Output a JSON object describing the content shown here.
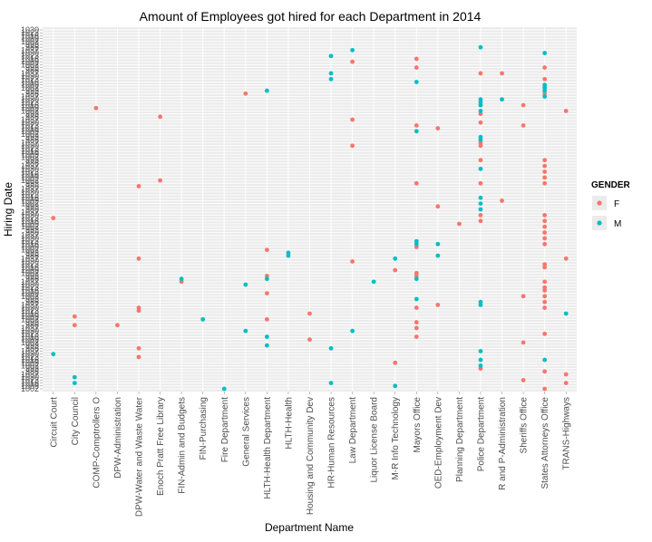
{
  "chart_data": {
    "type": "scatter",
    "title": "Amount of Employees got hired for each Department in 2014",
    "xlabel": "Department Name",
    "ylabel": "Hiring Date",
    "categories": [
      "Circuit Court",
      "City Council",
      "COMP-Comptrollers O",
      "DPW-Administration",
      "DPW-Water  and  Waste Water",
      "Enoch Pratt Free Library",
      "FIN-Admin  and  Budgets",
      "FIN-Purchasing",
      "Fire Department",
      "General Services",
      "HLTH-Health Department",
      "HLTH-Health",
      "Housing  and  Community Dev",
      "HR-Human Resources",
      "Law Department",
      "Liquor License Board",
      "M-R Info Technology",
      "Mayors Office",
      "OED-Employment Dev",
      "Planning Department",
      "Police Department",
      "R and P-Administration",
      "Sheriffs Office",
      "States Attorneys Office",
      "TRANS-Highways"
    ],
    "y_tick_count": 125,
    "y_tick_labels_visible": [
      "1002",
      "1009",
      "1016",
      "1023",
      "1030",
      "1037",
      "986",
      "993"
    ],
    "legend": {
      "title": "GENDER",
      "position": "right",
      "entries": [
        {
          "label": "F",
          "color": "#F8766D"
        },
        {
          "label": "M",
          "color": "#00BFC4"
        }
      ]
    },
    "grid": true,
    "panel_background": "#EBEBEB",
    "series": [
      {
        "name": "F",
        "color": "#F8766D",
        "points": [
          {
            "x": "Circuit Court",
            "y": 59
          },
          {
            "x": "City Council",
            "y": 25
          },
          {
            "x": "City Council",
            "y": 22
          },
          {
            "x": "COMP-Comptrollers O",
            "y": 97
          },
          {
            "x": "DPW-Administration",
            "y": 22
          },
          {
            "x": "DPW-Water  and  Waste Water",
            "y": 70
          },
          {
            "x": "DPW-Water  and  Waste Water",
            "y": 45
          },
          {
            "x": "DPW-Water  and  Waste Water",
            "y": 28
          },
          {
            "x": "DPW-Water  and  Waste Water",
            "y": 27
          },
          {
            "x": "DPW-Water  and  Waste Water",
            "y": 14
          },
          {
            "x": "DPW-Water  and  Waste Water",
            "y": 11
          },
          {
            "x": "Enoch Pratt Free Library",
            "y": 94
          },
          {
            "x": "Enoch Pratt Free Library",
            "y": 72
          },
          {
            "x": "FIN-Admin  and  Budgets",
            "y": 37
          },
          {
            "x": "General Services",
            "y": 102
          },
          {
            "x": "HLTH-Health Department",
            "y": 48
          },
          {
            "x": "HLTH-Health Department",
            "y": 39
          },
          {
            "x": "HLTH-Health Department",
            "y": 33
          },
          {
            "x": "HLTH-Health Department",
            "y": 24
          },
          {
            "x": "Housing  and  Community Dev",
            "y": 26
          },
          {
            "x": "Housing  and  Community Dev",
            "y": 17
          },
          {
            "x": "Law Department",
            "y": 113
          },
          {
            "x": "Law Department",
            "y": 93
          },
          {
            "x": "Law Department",
            "y": 84
          },
          {
            "x": "Law Department",
            "y": 44
          },
          {
            "x": "M-R Info Technology",
            "y": 41
          },
          {
            "x": "M-R Info Technology",
            "y": 9
          },
          {
            "x": "Mayors Office",
            "y": 114
          },
          {
            "x": "Mayors Office",
            "y": 111
          },
          {
            "x": "Mayors Office",
            "y": 91
          },
          {
            "x": "Mayors Office",
            "y": 71
          },
          {
            "x": "Mayors Office",
            "y": 49
          },
          {
            "x": "Mayors Office",
            "y": 40
          },
          {
            "x": "Mayors Office",
            "y": 39
          },
          {
            "x": "Mayors Office",
            "y": 28
          },
          {
            "x": "Mayors Office",
            "y": 23
          },
          {
            "x": "Mayors Office",
            "y": 21
          },
          {
            "x": "Mayors Office",
            "y": 18
          },
          {
            "x": "OED-Employment Dev",
            "y": 90
          },
          {
            "x": "OED-Employment Dev",
            "y": 63
          },
          {
            "x": "OED-Employment Dev",
            "y": 29
          },
          {
            "x": "Planning Department",
            "y": 57
          },
          {
            "x": "Police Department",
            "y": 109
          },
          {
            "x": "Police Department",
            "y": 98
          },
          {
            "x": "Police Department",
            "y": 95
          },
          {
            "x": "Police Department",
            "y": 92
          },
          {
            "x": "Police Department",
            "y": 85
          },
          {
            "x": "Police Department",
            "y": 84
          },
          {
            "x": "Police Department",
            "y": 79
          },
          {
            "x": "Police Department",
            "y": 71
          },
          {
            "x": "Police Department",
            "y": 60
          },
          {
            "x": "Police Department",
            "y": 58
          },
          {
            "x": "Police Department",
            "y": 7
          },
          {
            "x": "R and P-Administration",
            "y": 109
          },
          {
            "x": "R and P-Administration",
            "y": 65
          },
          {
            "x": "Sheriffs Office",
            "y": 98
          },
          {
            "x": "Sheriffs Office",
            "y": 91
          },
          {
            "x": "Sheriffs Office",
            "y": 32
          },
          {
            "x": "Sheriffs Office",
            "y": 16
          },
          {
            "x": "Sheriffs Office",
            "y": 3
          },
          {
            "x": "States Attorneys Office",
            "y": 111
          },
          {
            "x": "States Attorneys Office",
            "y": 107
          },
          {
            "x": "States Attorneys Office",
            "y": 104
          },
          {
            "x": "States Attorneys Office",
            "y": 102
          },
          {
            "x": "States Attorneys Office",
            "y": 79
          },
          {
            "x": "States Attorneys Office",
            "y": 77
          },
          {
            "x": "States Attorneys Office",
            "y": 75
          },
          {
            "x": "States Attorneys Office",
            "y": 73
          },
          {
            "x": "States Attorneys Office",
            "y": 71
          },
          {
            "x": "States Attorneys Office",
            "y": 60
          },
          {
            "x": "States Attorneys Office",
            "y": 58
          },
          {
            "x": "States Attorneys Office",
            "y": 56
          },
          {
            "x": "States Attorneys Office",
            "y": 54
          },
          {
            "x": "States Attorneys Office",
            "y": 52
          },
          {
            "x": "States Attorneys Office",
            "y": 50
          },
          {
            "x": "States Attorneys Office",
            "y": 43
          },
          {
            "x": "States Attorneys Office",
            "y": 42
          },
          {
            "x": "States Attorneys Office",
            "y": 37
          },
          {
            "x": "States Attorneys Office",
            "y": 35
          },
          {
            "x": "States Attorneys Office",
            "y": 34
          },
          {
            "x": "States Attorneys Office",
            "y": 32
          },
          {
            "x": "States Attorneys Office",
            "y": 30
          },
          {
            "x": "States Attorneys Office",
            "y": 28
          },
          {
            "x": "States Attorneys Office",
            "y": 19
          },
          {
            "x": "States Attorneys Office",
            "y": 6
          },
          {
            "x": "States Attorneys Office",
            "y": 0
          },
          {
            "x": "TRANS-Highways",
            "y": 96
          },
          {
            "x": "TRANS-Highways",
            "y": 45
          },
          {
            "x": "TRANS-Highways",
            "y": 5
          },
          {
            "x": "TRANS-Highways",
            "y": 2
          }
        ]
      },
      {
        "name": "M",
        "color": "#00BFC4",
        "points": [
          {
            "x": "Circuit Court",
            "y": 12
          },
          {
            "x": "City Council",
            "y": 4
          },
          {
            "x": "City Council",
            "y": 2
          },
          {
            "x": "FIN-Admin  and  Budgets",
            "y": 38
          },
          {
            "x": "FIN-Purchasing",
            "y": 24
          },
          {
            "x": "Fire Department",
            "y": 0
          },
          {
            "x": "General Services",
            "y": 36
          },
          {
            "x": "General Services",
            "y": 20
          },
          {
            "x": "HLTH-Health Department",
            "y": 103
          },
          {
            "x": "HLTH-Health Department",
            "y": 38
          },
          {
            "x": "HLTH-Health Department",
            "y": 18
          },
          {
            "x": "HLTH-Health Department",
            "y": 15
          },
          {
            "x": "HLTH-Health",
            "y": 47
          },
          {
            "x": "HLTH-Health",
            "y": 46
          },
          {
            "x": "HR-Human Resources",
            "y": 115
          },
          {
            "x": "HR-Human Resources",
            "y": 109
          },
          {
            "x": "HR-Human Resources",
            "y": 107
          },
          {
            "x": "HR-Human Resources",
            "y": 14
          },
          {
            "x": "HR-Human Resources",
            "y": 2
          },
          {
            "x": "Law Department",
            "y": 117
          },
          {
            "x": "Law Department",
            "y": 20
          },
          {
            "x": "Liquor License Board",
            "y": 37
          },
          {
            "x": "M-R Info Technology",
            "y": 45
          },
          {
            "x": "M-R Info Technology",
            "y": 1
          },
          {
            "x": "Mayors Office",
            "y": 106
          },
          {
            "x": "Mayors Office",
            "y": 89
          },
          {
            "x": "Mayors Office",
            "y": 51
          },
          {
            "x": "Mayors Office",
            "y": 50
          },
          {
            "x": "Mayors Office",
            "y": 38
          },
          {
            "x": "Mayors Office",
            "y": 31
          },
          {
            "x": "OED-Employment Dev",
            "y": 50
          },
          {
            "x": "OED-Employment Dev",
            "y": 46
          },
          {
            "x": "Police Department",
            "y": 118
          },
          {
            "x": "Police Department",
            "y": 100
          },
          {
            "x": "Police Department",
            "y": 99
          },
          {
            "x": "Police Department",
            "y": 98
          },
          {
            "x": "Police Department",
            "y": 96
          },
          {
            "x": "Police Department",
            "y": 87
          },
          {
            "x": "Police Department",
            "y": 86
          },
          {
            "x": "Police Department",
            "y": 76
          },
          {
            "x": "Police Department",
            "y": 66
          },
          {
            "x": "Police Department",
            "y": 64
          },
          {
            "x": "Police Department",
            "y": 62
          },
          {
            "x": "Police Department",
            "y": 30
          },
          {
            "x": "Police Department",
            "y": 29
          },
          {
            "x": "Police Department",
            "y": 13
          },
          {
            "x": "Police Department",
            "y": 10
          },
          {
            "x": "Police Department",
            "y": 8
          },
          {
            "x": "R and P-Administration",
            "y": 100
          },
          {
            "x": "States Attorneys Office",
            "y": 116
          },
          {
            "x": "States Attorneys Office",
            "y": 105
          },
          {
            "x": "States Attorneys Office",
            "y": 104
          },
          {
            "x": "States Attorneys Office",
            "y": 103
          },
          {
            "x": "States Attorneys Office",
            "y": 101
          },
          {
            "x": "States Attorneys Office",
            "y": 10
          },
          {
            "x": "TRANS-Highways",
            "y": 26
          }
        ]
      }
    ]
  }
}
